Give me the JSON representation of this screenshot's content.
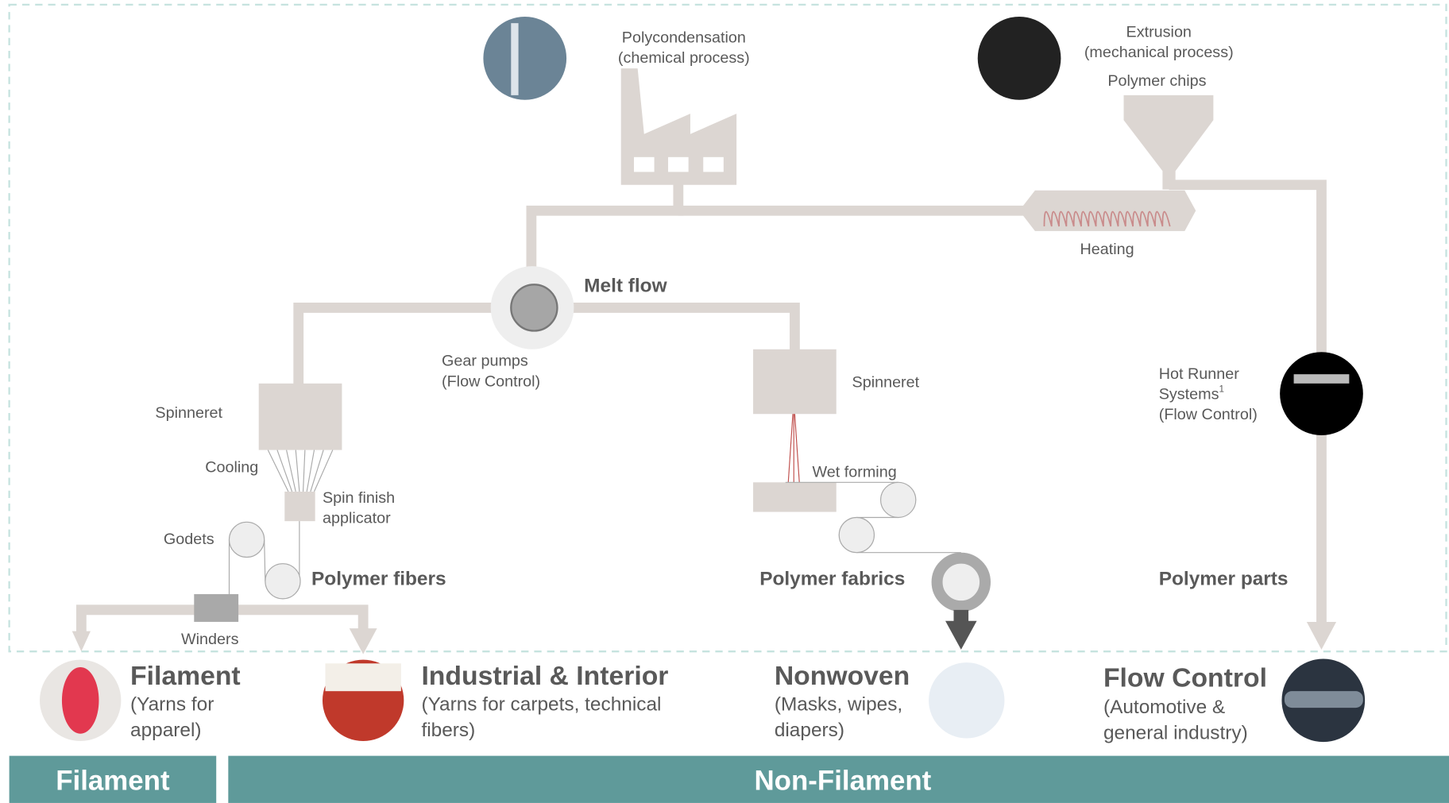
{
  "process": {
    "polycondensation": [
      "Polycondensation",
      "(chemical process)"
    ],
    "extrusion": [
      "Extrusion",
      "(mechanical process)"
    ],
    "polymer_chips": "Polymer chips",
    "heating": "Heating",
    "melt_flow": "Melt flow",
    "gear_pumps": [
      "Gear pumps",
      "(Flow Control)"
    ],
    "spinneret_left": "Spinneret",
    "spinneret_right": "Spinneret",
    "cooling": "Cooling",
    "spin_finish": [
      "Spin finish",
      "applicator"
    ],
    "godets": "Godets",
    "polymer_fibers": "Polymer fibers",
    "winders": "Winders",
    "wet_forming": "Wet forming",
    "polymer_fabrics": "Polymer fabrics",
    "hot_runner": [
      "Hot Runner",
      "Systems",
      "(Flow Control)"
    ],
    "hot_runner_footnote": "1",
    "polymer_parts": "Polymer parts"
  },
  "outputs": [
    {
      "title": "Filament",
      "description": [
        "(Yarns for",
        "apparel)"
      ]
    },
    {
      "title": "Industrial & Interior",
      "description": [
        "(Yarns for carpets, technical",
        "fibers)"
      ]
    },
    {
      "title": "Nonwoven",
      "description": [
        "(Masks, wipes,",
        "diapers)"
      ]
    },
    {
      "title": "Flow Control",
      "description": [
        "(Automotive &",
        "general industry)"
      ]
    }
  ],
  "footer": {
    "filament": "Filament",
    "non_filament": "Non-Filament"
  }
}
